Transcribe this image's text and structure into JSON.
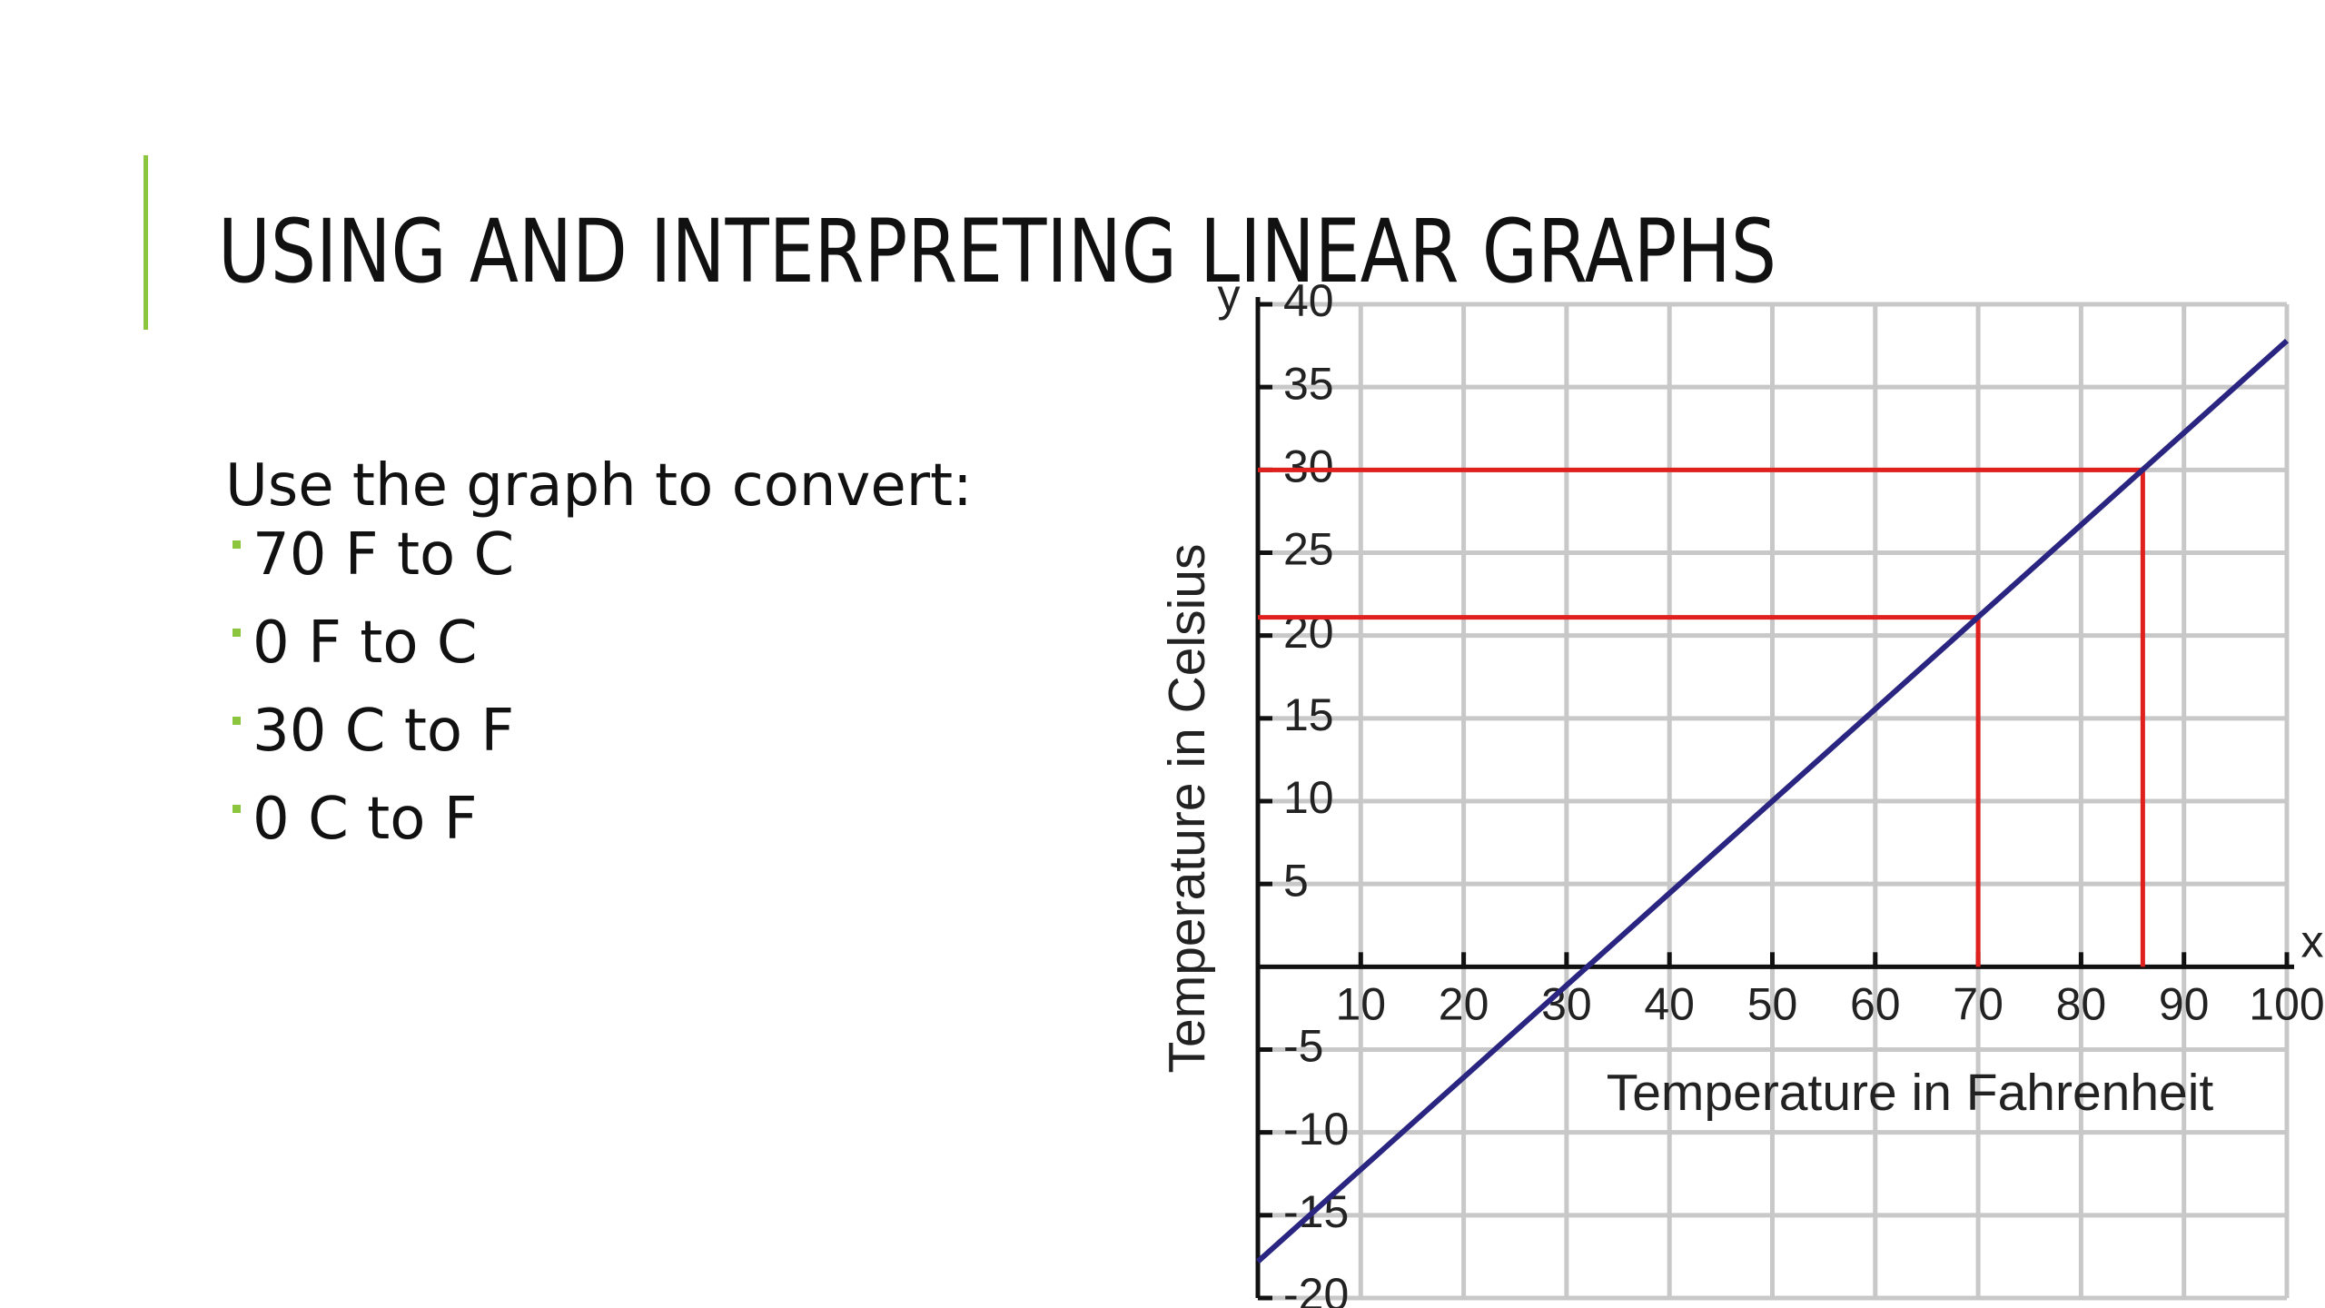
{
  "slide": {
    "title": "USING AND INTERPRETING LINEAR GRAPHS",
    "intro": "Use the graph to convert:",
    "bullets": [
      "70 F to C",
      "0 F to C",
      "30 C to F",
      "0 C to F"
    ]
  },
  "chart_data": {
    "type": "line",
    "x_label": "Temperature in Fahrenheit",
    "y_label": "Temperature in Celsius",
    "x_axis_name": "x",
    "y_axis_name": "y",
    "xlim": [
      0,
      100
    ],
    "ylim": [
      -20,
      40
    ],
    "xticks": [
      10,
      20,
      30,
      40,
      50,
      60,
      70,
      80,
      90,
      100
    ],
    "yticks": [
      -20,
      -15,
      -10,
      -5,
      5,
      10,
      15,
      20,
      25,
      30,
      35,
      40
    ],
    "grid": true,
    "series": [
      {
        "color": "#2a2580",
        "x": [
          0,
          100
        ],
        "values": [
          -17.8,
          37.8
        ]
      },
      {
        "color": "#e0201c",
        "x": [
          0,
          70,
          70
        ],
        "values": [
          21.1,
          21.1,
          0
        ]
      },
      {
        "color": "#e0201c",
        "x": [
          0,
          86,
          86
        ],
        "values": [
          30,
          30,
          0
        ]
      }
    ]
  }
}
